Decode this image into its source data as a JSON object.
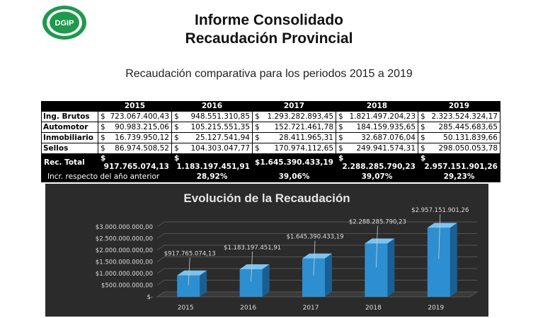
{
  "header": {
    "logo_text": "DGIP",
    "title_line1": "Informe Consolidado",
    "title_line2": "Recaudación Provincial",
    "subtitle": "Recaudación comparativa para los periodos 2015 a 2019"
  },
  "table": {
    "currency_symbol": "$",
    "years": [
      "2015",
      "2016",
      "2017",
      "2018",
      "2019"
    ],
    "rows": [
      {
        "label": "Ing. Brutos",
        "values": [
          "723.067.400,43",
          "948.551.310,85",
          "1.293.282.893,45",
          "1.821.497.204,23",
          "2.323.524.324,17"
        ]
      },
      {
        "label": "Automotor",
        "values": [
          "90.983.215,06",
          "105.215.551,35",
          "152.721.461,78",
          "184.159.935,65",
          "285.445.683,65"
        ]
      },
      {
        "label": "Inmobiliario",
        "values": [
          "16.739.950,12",
          "25.127.541,94",
          "28.411.965,31",
          "32.687.076,04",
          "50.131.839,66"
        ]
      },
      {
        "label": "Sellos",
        "values": [
          "86.974.508,52",
          "104.303.047,77",
          "170.974.112,65",
          "249.941.574,31",
          "298.050.053,78"
        ]
      }
    ],
    "total": {
      "label": "Rec. Total",
      "values": [
        "917.765.074,13",
        "1.183.197.451,91",
        "1.645.390.433,19",
        "2.288.285.790,23",
        "2.957.151.901,26"
      ]
    },
    "increase": {
      "label": "Incr. respecto del año anterior",
      "values": [
        "",
        "28,92%",
        "39,06%",
        "39,07%",
        "29,23%"
      ]
    }
  },
  "chart_data": {
    "type": "bar",
    "title": "Evolución de la Recaudación",
    "categories": [
      "2015",
      "2016",
      "2017",
      "2018",
      "2019"
    ],
    "values": [
      917765074.13,
      1183197451.91,
      1645390433.19,
      2288285790.23,
      2957151901.26
    ],
    "data_labels": [
      "$917.765.074,13",
      "$1.183.197.451,91",
      "$1.645.390.433,19",
      "$2.288.285.790,23",
      "$2.957.151.901,26"
    ],
    "y_ticks": [
      "$-",
      "$500.000.000,00",
      "$1.000.000.000,00",
      "$1.500.000.000,00",
      "$2.000.000.000,00",
      "$2.500.000.000,00",
      "$3.000.000.000,00"
    ],
    "ylim": [
      0,
      3000000000
    ],
    "grid": true,
    "colors": {
      "background": "#2b2b2b",
      "bar": "#2e8fd0",
      "bar_top": "#7cc3ef",
      "bar_side": "#1a5f93",
      "grid": "#555555",
      "text": "#dddddd"
    }
  }
}
